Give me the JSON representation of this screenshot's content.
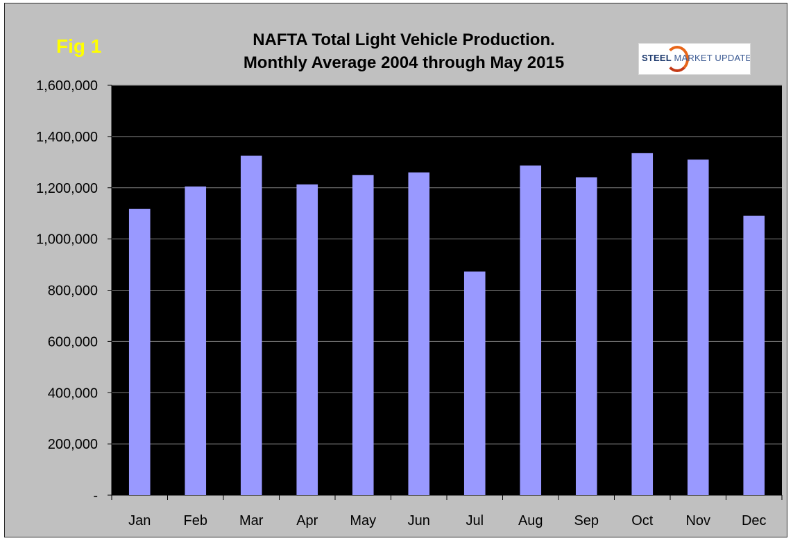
{
  "figure_label": "Fig 1",
  "logo": {
    "text_strong": "STEEL",
    "text_light": "MARKET UPDATE"
  },
  "colors": {
    "background": "#c0c0c0",
    "plot_area": "#000000",
    "bar": "#9999ff",
    "grid": "#808080",
    "fig_label": "#ffff00"
  },
  "chart_data": {
    "type": "bar",
    "title": "NAFTA Total Light Vehicle Production.",
    "subtitle": "Monthly Average 2004 through May 2015",
    "xlabel": "",
    "ylabel": "",
    "categories": [
      "Jan",
      "Feb",
      "Mar",
      "Apr",
      "May",
      "Jun",
      "Jul",
      "Aug",
      "Sep",
      "Oct",
      "Nov",
      "Dec"
    ],
    "values": [
      1118000,
      1205000,
      1325000,
      1213000,
      1250000,
      1260000,
      873000,
      1287000,
      1241000,
      1335000,
      1310000,
      1091000
    ],
    "ylim": [
      0,
      1600000
    ],
    "yticks": [
      0,
      200000,
      400000,
      600000,
      800000,
      1000000,
      1200000,
      1400000,
      1600000
    ],
    "ytick_labels": [
      "-",
      "200,000",
      "400,000",
      "600,000",
      "800,000",
      "1,000,000",
      "1,200,000",
      "1,400,000",
      "1,600,000"
    ],
    "grid": true,
    "legend": "none"
  }
}
